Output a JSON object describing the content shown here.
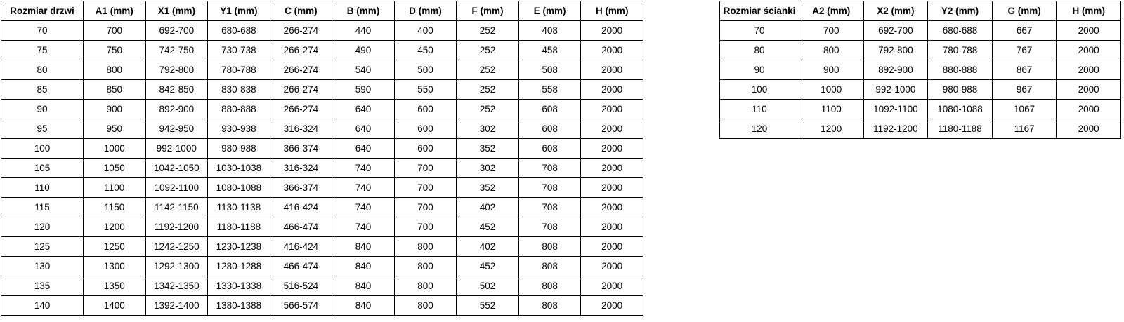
{
  "colors": {
    "background": "#ffffff",
    "border": "#000000",
    "text": "#000000"
  },
  "tables": [
    {
      "name": "door-sizes",
      "headers": [
        "Rozmiar drzwi",
        "A1 (mm)",
        "X1 (mm)",
        "Y1 (mm)",
        "C (mm)",
        "B (mm)",
        "D (mm)",
        "F (mm)",
        "E (mm)",
        "H (mm)"
      ],
      "rows": [
        [
          "70",
          "700",
          "692-700",
          "680-688",
          "266-274",
          "440",
          "400",
          "252",
          "408",
          "2000"
        ],
        [
          "75",
          "750",
          "742-750",
          "730-738",
          "266-274",
          "490",
          "450",
          "252",
          "458",
          "2000"
        ],
        [
          "80",
          "800",
          "792-800",
          "780-788",
          "266-274",
          "540",
          "500",
          "252",
          "508",
          "2000"
        ],
        [
          "85",
          "850",
          "842-850",
          "830-838",
          "266-274",
          "590",
          "550",
          "252",
          "558",
          "2000"
        ],
        [
          "90",
          "900",
          "892-900",
          "880-888",
          "266-274",
          "640",
          "600",
          "252",
          "608",
          "2000"
        ],
        [
          "95",
          "950",
          "942-950",
          "930-938",
          "316-324",
          "640",
          "600",
          "302",
          "608",
          "2000"
        ],
        [
          "100",
          "1000",
          "992-1000",
          "980-988",
          "366-374",
          "640",
          "600",
          "352",
          "608",
          "2000"
        ],
        [
          "105",
          "1050",
          "1042-1050",
          "1030-1038",
          "316-324",
          "740",
          "700",
          "302",
          "708",
          "2000"
        ],
        [
          "110",
          "1100",
          "1092-1100",
          "1080-1088",
          "366-374",
          "740",
          "700",
          "352",
          "708",
          "2000"
        ],
        [
          "115",
          "1150",
          "1142-1150",
          "1130-1138",
          "416-424",
          "740",
          "700",
          "402",
          "708",
          "2000"
        ],
        [
          "120",
          "1200",
          "1192-1200",
          "1180-1188",
          "466-474",
          "740",
          "700",
          "452",
          "708",
          "2000"
        ],
        [
          "125",
          "1250",
          "1242-1250",
          "1230-1238",
          "416-424",
          "840",
          "800",
          "402",
          "808",
          "2000"
        ],
        [
          "130",
          "1300",
          "1292-1300",
          "1280-1288",
          "466-474",
          "840",
          "800",
          "452",
          "808",
          "2000"
        ],
        [
          "135",
          "1350",
          "1342-1350",
          "1330-1338",
          "516-524",
          "840",
          "800",
          "502",
          "808",
          "2000"
        ],
        [
          "140",
          "1400",
          "1392-1400",
          "1380-1388",
          "566-574",
          "840",
          "800",
          "552",
          "808",
          "2000"
        ]
      ]
    },
    {
      "name": "wall-sizes",
      "headers": [
        "Rozmiar ścianki",
        "A2 (mm)",
        "X2 (mm)",
        "Y2 (mm)",
        "G (mm)",
        "H (mm)"
      ],
      "rows": [
        [
          "70",
          "700",
          "692-700",
          "680-688",
          "667",
          "2000"
        ],
        [
          "80",
          "800",
          "792-800",
          "780-788",
          "767",
          "2000"
        ],
        [
          "90",
          "900",
          "892-900",
          "880-888",
          "867",
          "2000"
        ],
        [
          "100",
          "1000",
          "992-1000",
          "980-988",
          "967",
          "2000"
        ],
        [
          "110",
          "1100",
          "1092-1100",
          "1080-1088",
          "1067",
          "2000"
        ],
        [
          "120",
          "1200",
          "1192-1200",
          "1180-1188",
          "1167",
          "2000"
        ]
      ]
    }
  ]
}
